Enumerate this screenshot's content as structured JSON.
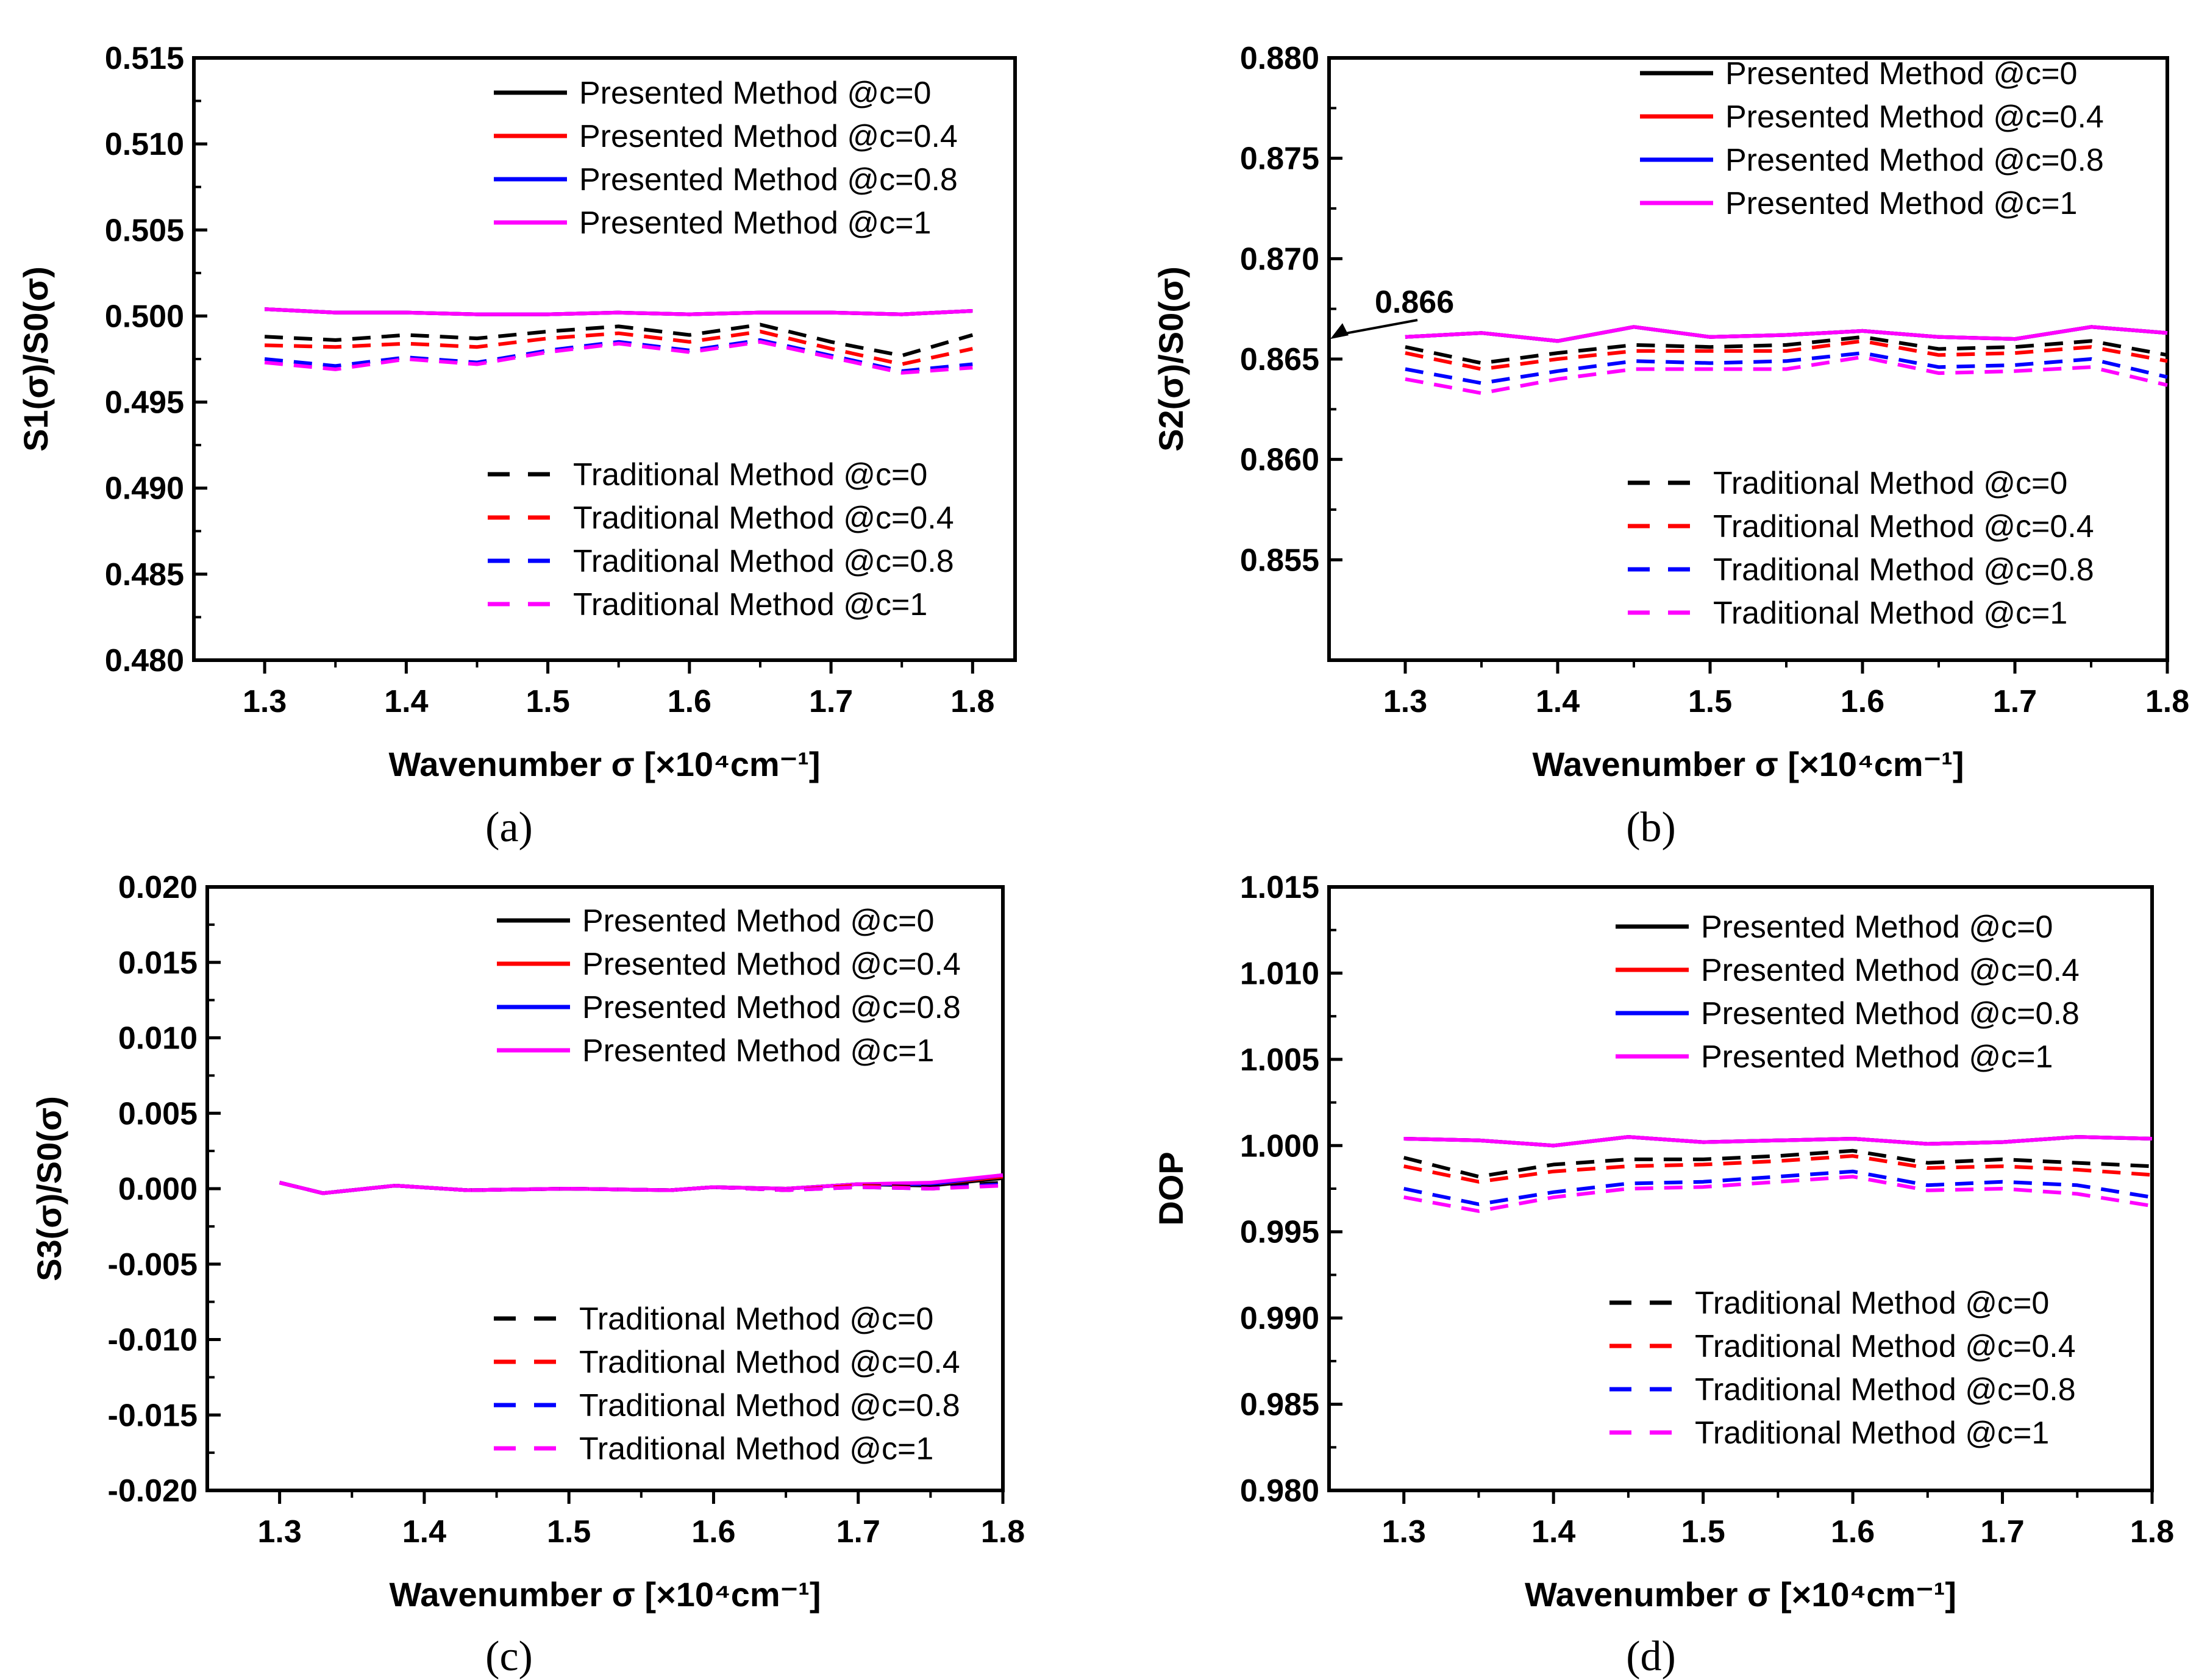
{
  "colors": {
    "black": "#000000",
    "red": "#ff0000",
    "blue": "#0000ff",
    "magenta": "#ff00ff"
  },
  "legend_presented": [
    "Presented Method @c=0",
    "Presented Method @c=0.4",
    "Presented Method @c=0.8",
    "Presented Method @c=1"
  ],
  "legend_traditional": [
    "Traditional Method @c=0",
    "Traditional Method @c=0.4",
    "Traditional Method @c=0.8",
    "Traditional Method @c=1"
  ],
  "chart_data": [
    {
      "type": "line",
      "panel": "(a)",
      "xlabel": "Wavenumber σ [×10⁴cm⁻¹]",
      "ylabel": "S1(σ)/S0(σ)",
      "xlim": [
        1.25,
        1.83
      ],
      "ylim": [
        0.48,
        0.515
      ],
      "xticks": [
        "1.3",
        "1.4",
        "1.5",
        "1.6",
        "1.7",
        "1.8"
      ],
      "yticks": [
        "0.480",
        "0.485",
        "0.490",
        "0.495",
        "0.500",
        "0.505",
        "0.510",
        "0.515"
      ],
      "x": [
        1.3,
        1.35,
        1.4,
        1.45,
        1.5,
        1.55,
        1.6,
        1.65,
        1.7,
        1.75,
        1.8
      ],
      "series": [
        {
          "name": "Presented Method @c=0",
          "style": "solid",
          "color": "black",
          "values": [
            0.5004,
            0.5002,
            0.5002,
            0.5001,
            0.5001,
            0.5002,
            0.5001,
            0.5002,
            0.5002,
            0.5001,
            0.5003
          ]
        },
        {
          "name": "Presented Method @c=0.4",
          "style": "solid",
          "color": "red",
          "values": [
            0.5004,
            0.5002,
            0.5002,
            0.5001,
            0.5001,
            0.5002,
            0.5001,
            0.5002,
            0.5002,
            0.5001,
            0.5003
          ]
        },
        {
          "name": "Presented Method @c=0.8",
          "style": "solid",
          "color": "blue",
          "values": [
            0.5004,
            0.5002,
            0.5002,
            0.5001,
            0.5001,
            0.5002,
            0.5001,
            0.5002,
            0.5002,
            0.5001,
            0.5003
          ]
        },
        {
          "name": "Presented Method @c=1",
          "style": "solid",
          "color": "magenta",
          "values": [
            0.5004,
            0.5002,
            0.5002,
            0.5001,
            0.5001,
            0.5002,
            0.5001,
            0.5002,
            0.5002,
            0.5001,
            0.5003
          ]
        },
        {
          "name": "Traditional Method @c=0",
          "style": "dashed",
          "color": "black",
          "values": [
            0.4988,
            0.4986,
            0.4989,
            0.4987,
            0.4991,
            0.4994,
            0.4989,
            0.4995,
            0.4985,
            0.4977,
            0.4989
          ]
        },
        {
          "name": "Traditional Method @c=0.4",
          "style": "dashed",
          "color": "red",
          "values": [
            0.4983,
            0.4982,
            0.4984,
            0.4982,
            0.4987,
            0.499,
            0.4985,
            0.4991,
            0.4981,
            0.4972,
            0.4981
          ]
        },
        {
          "name": "Traditional Method @c=0.8",
          "style": "dashed",
          "color": "blue",
          "values": [
            0.4975,
            0.4971,
            0.4976,
            0.4973,
            0.498,
            0.4985,
            0.498,
            0.4986,
            0.4977,
            0.4968,
            0.4972
          ]
        },
        {
          "name": "Traditional Method @c=1",
          "style": "dashed",
          "color": "magenta",
          "values": [
            0.4973,
            0.4969,
            0.4975,
            0.4972,
            0.4979,
            0.4984,
            0.4979,
            0.4985,
            0.4976,
            0.4967,
            0.497
          ]
        }
      ]
    },
    {
      "type": "line",
      "panel": "(b)",
      "xlabel": "Wavenumber σ [×10⁴cm⁻¹]",
      "ylabel": "S2(σ)/S0(σ)",
      "xlim": [
        1.25,
        1.8
      ],
      "ylim": [
        0.85,
        0.88
      ],
      "xticks": [
        "1.3",
        "1.4",
        "1.5",
        "1.6",
        "1.7",
        "1.8"
      ],
      "yticks": [
        "0.855",
        "0.860",
        "0.865",
        "0.870",
        "0.875",
        "0.880"
      ],
      "annotation": "0.866",
      "x": [
        1.3,
        1.35,
        1.4,
        1.45,
        1.5,
        1.55,
        1.6,
        1.65,
        1.7,
        1.75,
        1.8
      ],
      "series": [
        {
          "name": "Presented Method @c=0",
          "style": "solid",
          "color": "black",
          "values": [
            0.8661,
            0.8663,
            0.8659,
            0.8666,
            0.8661,
            0.8662,
            0.8664,
            0.8661,
            0.866,
            0.8666,
            0.8663
          ]
        },
        {
          "name": "Presented Method @c=0.4",
          "style": "solid",
          "color": "red",
          "values": [
            0.8661,
            0.8663,
            0.8659,
            0.8666,
            0.8661,
            0.8662,
            0.8664,
            0.8661,
            0.866,
            0.8666,
            0.8663
          ]
        },
        {
          "name": "Presented Method @c=0.8",
          "style": "solid",
          "color": "blue",
          "values": [
            0.8661,
            0.8663,
            0.8659,
            0.8666,
            0.8661,
            0.8662,
            0.8664,
            0.8661,
            0.866,
            0.8666,
            0.8663
          ]
        },
        {
          "name": "Presented Method @c=1",
          "style": "solid",
          "color": "magenta",
          "values": [
            0.8661,
            0.8663,
            0.8659,
            0.8666,
            0.8661,
            0.8662,
            0.8664,
            0.8661,
            0.866,
            0.8666,
            0.8663
          ]
        },
        {
          "name": "Traditional Method @c=0",
          "style": "dashed",
          "color": "black",
          "values": [
            0.8656,
            0.8648,
            0.8653,
            0.8657,
            0.8656,
            0.8657,
            0.8661,
            0.8655,
            0.8656,
            0.8659,
            0.8652
          ]
        },
        {
          "name": "Traditional Method @c=0.4",
          "style": "dashed",
          "color": "red",
          "values": [
            0.8653,
            0.8645,
            0.865,
            0.8654,
            0.8654,
            0.8654,
            0.8659,
            0.8652,
            0.8653,
            0.8656,
            0.8649
          ]
        },
        {
          "name": "Traditional Method @c=0.8",
          "style": "dashed",
          "color": "blue",
          "values": [
            0.8645,
            0.8638,
            0.8644,
            0.8649,
            0.8648,
            0.8649,
            0.8653,
            0.8646,
            0.8647,
            0.865,
            0.8641
          ]
        },
        {
          "name": "Traditional Method @c=1",
          "style": "dashed",
          "color": "magenta",
          "values": [
            0.864,
            0.8633,
            0.864,
            0.8645,
            0.8645,
            0.8645,
            0.8651,
            0.8643,
            0.8644,
            0.8646,
            0.8637
          ]
        }
      ]
    },
    {
      "type": "line",
      "panel": "(c)",
      "xlabel": "Wavenumber σ [×10⁴cm⁻¹]",
      "ylabel": "S3(σ)/S0(σ)",
      "xlim": [
        1.25,
        1.8
      ],
      "ylim": [
        -0.02,
        0.02
      ],
      "xticks": [
        "1.3",
        "1.4",
        "1.5",
        "1.6",
        "1.7",
        "1.8"
      ],
      "yticks": [
        "-0.020",
        "-0.015",
        "-0.010",
        "-0.005",
        "0.000",
        "0.005",
        "0.010",
        "0.015",
        "0.020"
      ],
      "x": [
        1.3,
        1.33,
        1.38,
        1.43,
        1.5,
        1.57,
        1.6,
        1.65,
        1.7,
        1.75,
        1.8
      ],
      "series": [
        {
          "name": "Presented Method @c=0",
          "style": "solid",
          "color": "black",
          "values": [
            0.0004,
            -0.0003,
            0.0002,
            -0.0001,
            0.0,
            -0.0001,
            0.0001,
            0.0,
            0.0003,
            0.0002,
            0.0007
          ]
        },
        {
          "name": "Presented Method @c=0.4",
          "style": "solid",
          "color": "red",
          "values": [
            0.0004,
            -0.0003,
            0.0002,
            -0.0001,
            0.0,
            -0.0001,
            0.0001,
            0.0,
            0.0003,
            0.0003,
            0.0008
          ]
        },
        {
          "name": "Presented Method @c=0.8",
          "style": "solid",
          "color": "blue",
          "values": [
            0.0004,
            -0.0003,
            0.0002,
            -0.0001,
            0.0,
            -0.0001,
            0.0001,
            0.0,
            0.0003,
            0.0003,
            0.0009
          ]
        },
        {
          "name": "Presented Method @c=1",
          "style": "solid",
          "color": "magenta",
          "values": [
            0.0004,
            -0.0003,
            0.0002,
            -0.0001,
            0.0,
            -0.0001,
            0.0001,
            0.0,
            0.0003,
            0.0004,
            0.0009
          ]
        },
        {
          "name": "Traditional Method @c=0",
          "style": "dashed",
          "color": "black",
          "values": [
            0.0004,
            -0.0003,
            0.0002,
            -0.0001,
            0.0,
            -0.0001,
            0.0001,
            -0.0001,
            0.0002,
            0.0001,
            0.0004
          ]
        },
        {
          "name": "Traditional Method @c=0.4",
          "style": "dashed",
          "color": "red",
          "values": [
            0.0004,
            -0.0003,
            0.0002,
            -0.0001,
            0.0,
            -0.0001,
            0.0001,
            -0.0001,
            0.0002,
            0.0,
            0.0003
          ]
        },
        {
          "name": "Traditional Method @c=0.8",
          "style": "dashed",
          "color": "blue",
          "values": [
            0.0004,
            -0.0003,
            0.0002,
            -0.0001,
            0.0,
            -0.0001,
            0.0001,
            -0.0001,
            0.0001,
            0.0,
            0.0003
          ]
        },
        {
          "name": "Traditional Method @c=1",
          "style": "dashed",
          "color": "magenta",
          "values": [
            0.0004,
            -0.0003,
            0.0002,
            -0.0001,
            0.0,
            -0.0001,
            0.0001,
            -0.0001,
            0.0001,
            0.0,
            0.0002
          ]
        }
      ]
    },
    {
      "type": "line",
      "panel": "(d)",
      "xlabel": "Wavenumber σ [×10⁴cm⁻¹]",
      "ylabel": "DOP",
      "xlim": [
        1.25,
        1.8
      ],
      "ylim": [
        0.98,
        1.015
      ],
      "xticks": [
        "1.3",
        "1.4",
        "1.5",
        "1.6",
        "1.7",
        "1.8"
      ],
      "yticks": [
        "0.980",
        "0.985",
        "0.990",
        "0.995",
        "1.000",
        "1.005",
        "1.010",
        "1.015"
      ],
      "x": [
        1.3,
        1.35,
        1.4,
        1.45,
        1.5,
        1.55,
        1.6,
        1.65,
        1.7,
        1.75,
        1.8
      ],
      "series": [
        {
          "name": "Presented Method @c=0",
          "style": "solid",
          "color": "black",
          "values": [
            1.0004,
            1.0003,
            1.0,
            1.0005,
            1.0002,
            1.0003,
            1.0004,
            1.0001,
            1.0002,
            1.0005,
            1.0004
          ]
        },
        {
          "name": "Presented Method @c=0.4",
          "style": "solid",
          "color": "red",
          "values": [
            1.0004,
            1.0003,
            1.0,
            1.0005,
            1.0002,
            1.0003,
            1.0004,
            1.0001,
            1.0002,
            1.0005,
            1.0004
          ]
        },
        {
          "name": "Presented Method @c=0.8",
          "style": "solid",
          "color": "blue",
          "values": [
            1.0004,
            1.0003,
            1.0,
            1.0005,
            1.0002,
            1.0003,
            1.0004,
            1.0001,
            1.0002,
            1.0005,
            1.0004
          ]
        },
        {
          "name": "Presented Method @c=1",
          "style": "solid",
          "color": "magenta",
          "values": [
            1.0004,
            1.0003,
            1.0,
            1.0005,
            1.0002,
            1.0003,
            1.0004,
            1.0001,
            1.0002,
            1.0005,
            1.0004
          ]
        },
        {
          "name": "Traditional Method @c=0",
          "style": "dashed",
          "color": "black",
          "values": [
            0.9993,
            0.9982,
            0.9989,
            0.9992,
            0.9992,
            0.9994,
            0.9997,
            0.999,
            0.9992,
            0.999,
            0.9988
          ]
        },
        {
          "name": "Traditional Method @c=0.4",
          "style": "dashed",
          "color": "red",
          "values": [
            0.9988,
            0.9979,
            0.9985,
            0.9988,
            0.9989,
            0.9991,
            0.9994,
            0.9987,
            0.9988,
            0.9986,
            0.9983
          ]
        },
        {
          "name": "Traditional Method @c=0.8",
          "style": "dashed",
          "color": "blue",
          "values": [
            0.9975,
            0.9966,
            0.9973,
            0.9978,
            0.9979,
            0.9982,
            0.9985,
            0.9977,
            0.9979,
            0.9977,
            0.997
          ]
        },
        {
          "name": "Traditional Method @c=1",
          "style": "dashed",
          "color": "magenta",
          "values": [
            0.997,
            0.9962,
            0.997,
            0.9975,
            0.9976,
            0.9979,
            0.9982,
            0.9974,
            0.9975,
            0.9972,
            0.9965
          ]
        }
      ]
    }
  ]
}
